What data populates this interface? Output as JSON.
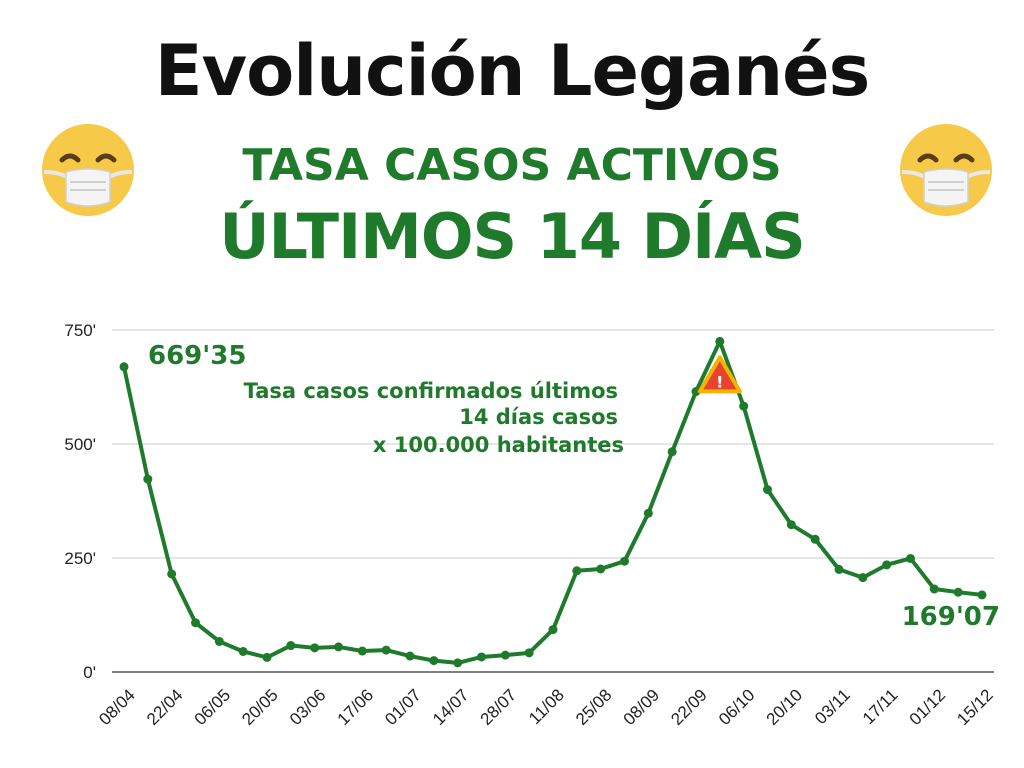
{
  "header": {
    "title": "Evolución Leganés",
    "subtitle_1": "TASA CASOS ACTIVOS",
    "subtitle_2": "ÚLTIMOS 14 DÍAS"
  },
  "icons": {
    "left_emoji": "face-with-medical-mask-icon",
    "right_emoji": "face-with-medical-mask-icon",
    "peak_marker": "warning-icon"
  },
  "colors": {
    "line": "#1f7a2c",
    "text_accent": "#1f7a2c",
    "warning": "#e8432d"
  },
  "chart_data": {
    "type": "line",
    "title": "",
    "xlabel": "",
    "ylabel": "",
    "ylim": [
      0,
      750
    ],
    "y_ticks": [
      0,
      250,
      500,
      750
    ],
    "y_tick_labels": [
      "0'",
      "250'",
      "500'",
      "750'"
    ],
    "x_tick_labels": [
      "08/04",
      "22/04",
      "06/05",
      "20/05",
      "03/06",
      "17/06",
      "01/07",
      "14/07",
      "28/07",
      "11/08",
      "25/08",
      "08/09",
      "22/09",
      "06/10",
      "20/10",
      "03/11",
      "17/11",
      "01/12",
      "15/12"
    ],
    "grid": true,
    "series": [
      {
        "values": [
          669.35,
          423,
          215,
          108,
          67,
          45,
          32,
          58,
          53,
          55,
          46,
          48,
          35,
          25,
          20,
          33,
          37,
          42,
          93,
          222,
          226,
          243,
          348,
          483,
          615,
          725,
          583,
          400,
          323,
          291,
          225,
          207,
          235,
          249,
          182,
          175,
          169.07
        ]
      }
    ],
    "annotations": {
      "first_value": "669'35",
      "last_value": "169'07",
      "description": [
        "Tasa casos confirmados últimos",
        "14 días  casos",
        "x 100.000 habitantes"
      ]
    }
  }
}
